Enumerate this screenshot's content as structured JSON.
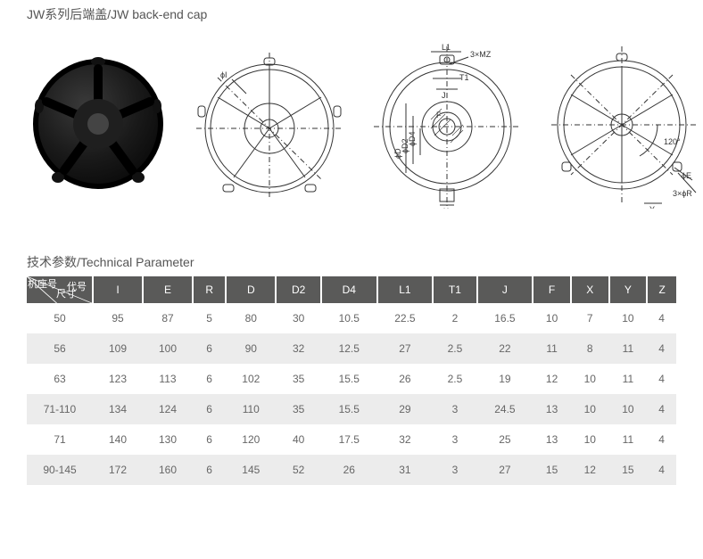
{
  "title": "JW系列后端盖/JW back-end cap",
  "subtitle": "技术参数/Technical Parameter",
  "corner_top": "代号",
  "corner_mid": "机座号",
  "corner_bot": "尺寸",
  "table": {
    "header_bg": "#5a5a59",
    "header_fg": "#ffffff",
    "row_alt_bg": "#ececec",
    "text_color": "#666666",
    "columns": [
      "I",
      "E",
      "R",
      "D",
      "D2",
      "D4",
      "L1",
      "T1",
      "J",
      "F",
      "X",
      "Y",
      "Z"
    ],
    "rows": [
      {
        "key": "50",
        "cells": [
          "95",
          "87",
          "5",
          "80",
          "30",
          "10.5",
          "22.5",
          "2",
          "16.5",
          "10",
          "7",
          "10",
          "4"
        ]
      },
      {
        "key": "56",
        "cells": [
          "109",
          "100",
          "6",
          "90",
          "32",
          "12.5",
          "27",
          "2.5",
          "22",
          "11",
          "8",
          "11",
          "4"
        ]
      },
      {
        "key": "63",
        "cells": [
          "123",
          "113",
          "6",
          "102",
          "35",
          "15.5",
          "26",
          "2.5",
          "19",
          "12",
          "10",
          "11",
          "4"
        ]
      },
      {
        "key": "71-110",
        "cells": [
          "134",
          "124",
          "6",
          "110",
          "35",
          "15.5",
          "29",
          "3",
          "24.5",
          "13",
          "10",
          "10",
          "4"
        ]
      },
      {
        "key": "71",
        "cells": [
          "140",
          "130",
          "6",
          "120",
          "40",
          "17.5",
          "32",
          "3",
          "25",
          "13",
          "10",
          "11",
          "4"
        ]
      },
      {
        "key": "90-145",
        "cells": [
          "172",
          "160",
          "6",
          "145",
          "52",
          "26",
          "31",
          "3",
          "27",
          "15",
          "12",
          "15",
          "4"
        ]
      }
    ]
  },
  "diagram_labels": {
    "phiI": "ϕI",
    "L1": "L1",
    "MZ": "3×MZ",
    "T1": "T1",
    "J": "J",
    "F": "F",
    "phiD4": "ϕD4",
    "phiD2": "ϕD2",
    "phiD": "ϕD",
    "X": "X",
    "angle": "120°",
    "phiE": "ϕE",
    "phiR": "3×ϕR",
    "Y": "Y"
  }
}
